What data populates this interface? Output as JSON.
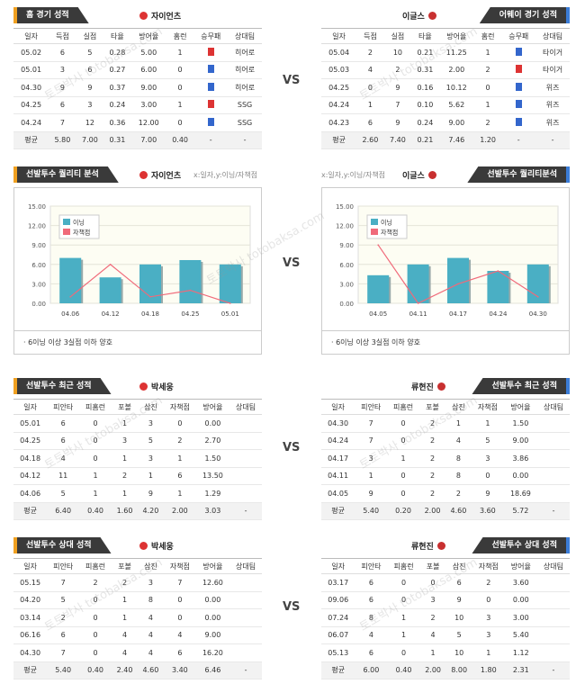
{
  "home_records": {
    "title": "홈 경기 성적",
    "team": "자이언츠",
    "headers": [
      "일자",
      "득점",
      "실점",
      "타율",
      "방어율",
      "홈런",
      "승무패",
      "상대팀"
    ],
    "rows": [
      [
        "05.02",
        "6",
        "5",
        "0.28",
        "5.00",
        "1",
        "패",
        "히어로"
      ],
      [
        "05.01",
        "3",
        "6",
        "0.27",
        "6.00",
        "0",
        "승",
        "히어로"
      ],
      [
        "04.30",
        "9",
        "9",
        "0.37",
        "9.00",
        "0",
        "승",
        "히어로"
      ],
      [
        "04.25",
        "6",
        "3",
        "0.24",
        "3.00",
        "1",
        "패",
        "SSG"
      ],
      [
        "04.24",
        "7",
        "12",
        "0.36",
        "12.00",
        "0",
        "승",
        "SSG"
      ]
    ],
    "avg": [
      "평균",
      "5.80",
      "7.00",
      "0.31",
      "7.00",
      "0.40",
      "-",
      "-"
    ]
  },
  "away_records": {
    "title": "어웨이 경기 성적",
    "team": "이글스",
    "headers": [
      "일자",
      "득점",
      "실점",
      "타율",
      "방어율",
      "홈런",
      "승무패",
      "상대팀"
    ],
    "rows": [
      [
        "05.04",
        "2",
        "10",
        "0.21",
        "11.25",
        "1",
        "승",
        "타이거"
      ],
      [
        "05.03",
        "4",
        "2",
        "0.31",
        "2.00",
        "2",
        "패",
        "타이거"
      ],
      [
        "04.25",
        "0",
        "9",
        "0.16",
        "10.12",
        "0",
        "승",
        "위즈"
      ],
      [
        "04.24",
        "1",
        "7",
        "0.10",
        "5.62",
        "1",
        "승",
        "위즈"
      ],
      [
        "04.23",
        "6",
        "9",
        "0.24",
        "9.00",
        "2",
        "승",
        "위즈"
      ]
    ],
    "avg": [
      "평균",
      "2.60",
      "7.40",
      "0.21",
      "7.46",
      "1.20",
      "-",
      "-"
    ]
  },
  "quality_left": {
    "title": "선발투수 퀄리티 분석",
    "team": "자이언츠",
    "axis_note": "x:일자,y:이닝/자책점",
    "footnote": "6이닝 이상 3실점 이하 양호",
    "legend": [
      "이닝",
      "자책점"
    ]
  },
  "quality_right": {
    "title": "선발투수 퀄리티분석",
    "team": "이글스",
    "axis_note": "x:일자,y:이닝/자책점",
    "footnote": "6이닝 이상 3실점 이하 양호",
    "legend": [
      "이닝",
      "자책점"
    ]
  },
  "chart_data": [
    {
      "type": "bar",
      "categories": [
        "04.06",
        "04.12",
        "04.18",
        "04.25",
        "05.01"
      ],
      "series": [
        {
          "name": "이닝",
          "values": [
            7.0,
            4.0,
            6.0,
            6.67,
            6.0
          ]
        },
        {
          "name": "자책점",
          "values": [
            1,
            6,
            1,
            2,
            0
          ]
        }
      ],
      "yticks": [
        "0.00",
        "3.00",
        "6.00",
        "9.00",
        "12.00",
        "15.00"
      ],
      "ylim": [
        0,
        15
      ]
    },
    {
      "type": "bar",
      "categories": [
        "04.05",
        "04.11",
        "04.17",
        "04.24",
        "04.30"
      ],
      "series": [
        {
          "name": "이닝",
          "values": [
            4.33,
            6.0,
            7.0,
            5.0,
            6.0
          ]
        },
        {
          "name": "자책점",
          "values": [
            9,
            0,
            3,
            5,
            1
          ]
        }
      ],
      "yticks": [
        "0.00",
        "3.00",
        "6.00",
        "9.00",
        "12.00",
        "15.00"
      ],
      "ylim": [
        0,
        15
      ]
    }
  ],
  "pitcher_recent_left": {
    "title": "선발투수 최근 성적",
    "player": "박세웅",
    "headers": [
      "일자",
      "피안타",
      "피홈런",
      "포볼",
      "삼진",
      "자책점",
      "방어율",
      "상대팀"
    ],
    "rows": [
      [
        "05.01",
        "6",
        "0",
        "1",
        "3",
        "0",
        "0.00",
        ""
      ],
      [
        "04.25",
        "6",
        "0",
        "3",
        "5",
        "2",
        "2.70",
        ""
      ],
      [
        "04.18",
        "4",
        "0",
        "1",
        "3",
        "1",
        "1.50",
        ""
      ],
      [
        "04.12",
        "11",
        "1",
        "2",
        "1",
        "6",
        "13.50",
        ""
      ],
      [
        "04.06",
        "5",
        "1",
        "1",
        "9",
        "1",
        "1.29",
        ""
      ]
    ],
    "avg": [
      "평균",
      "6.40",
      "0.40",
      "1.60",
      "4.20",
      "2.00",
      "3.03",
      "-"
    ]
  },
  "pitcher_recent_right": {
    "title": "선발투수 최근 성적",
    "player": "류현진",
    "headers": [
      "일자",
      "피안타",
      "피홈런",
      "포볼",
      "삼진",
      "자책점",
      "방어율",
      "상대팀"
    ],
    "rows": [
      [
        "04.30",
        "7",
        "0",
        "2",
        "1",
        "1",
        "1.50",
        ""
      ],
      [
        "04.24",
        "7",
        "0",
        "2",
        "4",
        "5",
        "9.00",
        ""
      ],
      [
        "04.17",
        "3",
        "1",
        "2",
        "8",
        "3",
        "3.86",
        ""
      ],
      [
        "04.11",
        "1",
        "0",
        "2",
        "8",
        "0",
        "0.00",
        ""
      ],
      [
        "04.05",
        "9",
        "0",
        "2",
        "2",
        "9",
        "18.69",
        ""
      ]
    ],
    "avg": [
      "평균",
      "5.40",
      "0.20",
      "2.00",
      "4.60",
      "3.60",
      "5.72",
      "-"
    ]
  },
  "pitcher_vs_left": {
    "title": "선발투수 상대 성적",
    "player": "박세웅",
    "headers": [
      "일자",
      "피안타",
      "피홈런",
      "포볼",
      "삼진",
      "자책점",
      "방어율",
      "상대팀"
    ],
    "rows": [
      [
        "05.15",
        "7",
        "2",
        "2",
        "3",
        "7",
        "12.60",
        ""
      ],
      [
        "04.20",
        "5",
        "0",
        "1",
        "8",
        "0",
        "0.00",
        ""
      ],
      [
        "03.14",
        "2",
        "0",
        "1",
        "4",
        "0",
        "0.00",
        ""
      ],
      [
        "06.16",
        "6",
        "0",
        "4",
        "4",
        "4",
        "9.00",
        ""
      ],
      [
        "04.30",
        "7",
        "0",
        "4",
        "4",
        "6",
        "16.20",
        ""
      ]
    ],
    "avg": [
      "평균",
      "5.40",
      "0.40",
      "2.40",
      "4.60",
      "3.40",
      "6.46",
      "-"
    ]
  },
  "pitcher_vs_right": {
    "title": "선발투수 상대 성적",
    "player": "류현진",
    "headers": [
      "일자",
      "피안타",
      "피홈런",
      "포볼",
      "삼진",
      "자책점",
      "방어율",
      "상대팀"
    ],
    "rows": [
      [
        "03.17",
        "6",
        "0",
        "0",
        "6",
        "2",
        "3.60",
        ""
      ],
      [
        "09.06",
        "6",
        "0",
        "3",
        "9",
        "0",
        "0.00",
        ""
      ],
      [
        "07.24",
        "8",
        "1",
        "2",
        "10",
        "3",
        "3.00",
        ""
      ],
      [
        "06.07",
        "4",
        "1",
        "4",
        "5",
        "3",
        "5.40",
        ""
      ],
      [
        "05.13",
        "6",
        "0",
        "1",
        "10",
        "1",
        "1.12",
        ""
      ]
    ],
    "avg": [
      "평균",
      "6.00",
      "0.40",
      "2.00",
      "8.00",
      "1.80",
      "2.31",
      "-"
    ]
  },
  "vs_label": "VS",
  "watermark": [
    "토토박사",
    "totobaksa.com"
  ]
}
